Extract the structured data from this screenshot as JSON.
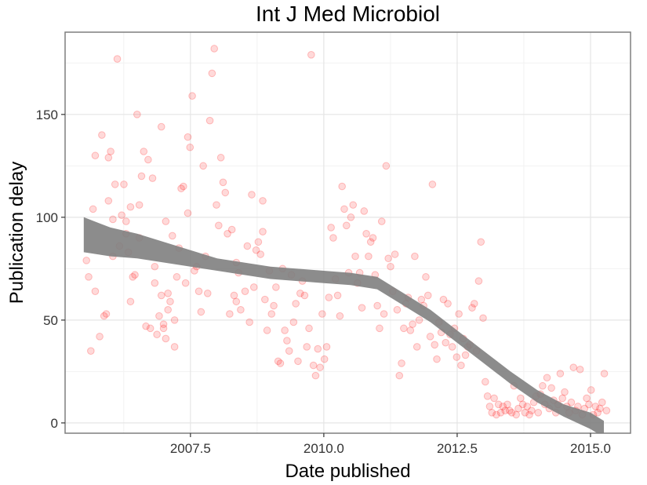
{
  "chart_data": {
    "type": "scatter",
    "title": "Int J Med Microbiol",
    "xlabel": "Date published",
    "ylabel": "Publication delay",
    "xlim": [
      2005.15,
      2015.75
    ],
    "ylim": [
      -5,
      190
    ],
    "x_ticks": [
      2007.5,
      2010.0,
      2012.5,
      2015.0
    ],
    "x_tick_labels": [
      "2007.5",
      "2010.0",
      "2012.5",
      "2015.0"
    ],
    "y_ticks": [
      0,
      50,
      100,
      150
    ],
    "y_tick_labels": [
      "0",
      "50",
      "100",
      "150"
    ],
    "grid": true,
    "point_color": "#ff0000",
    "point_opacity": 0.15,
    "smooth_color": "#808080",
    "series": [
      {
        "type": "points",
        "points": [
          [
            5.6,
            79
          ],
          [
            5.65,
            71
          ],
          [
            5.7,
            35
          ],
          [
            5.75,
            104
          ],
          [
            5.8,
            64
          ],
          [
            5.8,
            130
          ],
          [
            5.9,
            42
          ],
          [
            5.95,
            140
          ],
          [
            6.0,
            52
          ],
          [
            6.05,
            53
          ],
          [
            6.1,
            108
          ],
          [
            6.1,
            129
          ],
          [
            6.15,
            132
          ],
          [
            6.2,
            99
          ],
          [
            6.2,
            81
          ],
          [
            6.25,
            116
          ],
          [
            6.3,
            177
          ],
          [
            6.35,
            86
          ],
          [
            6.4,
            101
          ],
          [
            6.45,
            116
          ],
          [
            6.5,
            98
          ],
          [
            6.5,
            92
          ],
          [
            6.55,
            83
          ],
          [
            6.6,
            59
          ],
          [
            6.6,
            105
          ],
          [
            6.65,
            71
          ],
          [
            6.7,
            72
          ],
          [
            6.75,
            150
          ],
          [
            6.8,
            90
          ],
          [
            6.8,
            106
          ],
          [
            6.85,
            120
          ],
          [
            6.9,
            132
          ],
          [
            6.95,
            47
          ],
          [
            7.0,
            128
          ],
          [
            7.05,
            46
          ],
          [
            7.1,
            119
          ],
          [
            7.15,
            68
          ],
          [
            7.15,
            76
          ],
          [
            7.2,
            43
          ],
          [
            7.25,
            52
          ],
          [
            7.3,
            144
          ],
          [
            7.3,
            62
          ],
          [
            7.35,
            48
          ],
          [
            7.35,
            46
          ],
          [
            7.4,
            41
          ],
          [
            7.4,
            98
          ],
          [
            7.45,
            63
          ],
          [
            7.45,
            55
          ],
          [
            7.5,
            59
          ],
          [
            7.55,
            91
          ],
          [
            7.6,
            37
          ],
          [
            7.6,
            50
          ],
          [
            7.65,
            71
          ],
          [
            7.7,
            85
          ],
          [
            7.75,
            114
          ],
          [
            7.8,
            115
          ],
          [
            7.85,
            68
          ],
          [
            7.9,
            102
          ],
          [
            7.9,
            139
          ],
          [
            7.95,
            134
          ],
          [
            8.0,
            159
          ],
          [
            8.05,
            74
          ],
          [
            8.1,
            76
          ],
          [
            8.15,
            64
          ],
          [
            8.2,
            54
          ],
          [
            8.25,
            125
          ],
          [
            8.3,
            81
          ],
          [
            8.35,
            63
          ],
          [
            8.4,
            147
          ],
          [
            8.45,
            170
          ],
          [
            8.5,
            182
          ],
          [
            8.55,
            106
          ],
          [
            8.6,
            96
          ],
          [
            8.65,
            129
          ],
          [
            8.7,
            117
          ],
          [
            8.75,
            112
          ],
          [
            8.8,
            92
          ],
          [
            8.85,
            53
          ],
          [
            8.9,
            94
          ],
          [
            8.95,
            62
          ],
          [
            9.0,
            59
          ],
          [
            9.0,
            78
          ],
          [
            9.05,
            73
          ],
          [
            9.1,
            55
          ],
          [
            9.2,
            64
          ],
          [
            9.25,
            86
          ],
          [
            9.3,
            49
          ],
          [
            9.35,
            111
          ],
          [
            9.4,
            66
          ],
          [
            9.45,
            84
          ],
          [
            9.5,
            88
          ],
          [
            9.55,
            82
          ],
          [
            9.6,
            108
          ],
          [
            9.6,
            93
          ],
          [
            9.65,
            60
          ],
          [
            9.7,
            45
          ],
          [
            9.75,
            74
          ],
          [
            9.8,
            53
          ],
          [
            9.85,
            57
          ],
          [
            9.9,
            66
          ],
          [
            9.95,
            30
          ],
          [
            10.0,
            29
          ],
          [
            10.05,
            75
          ],
          [
            10.1,
            45
          ],
          [
            10.15,
            40
          ],
          [
            10.2,
            35
          ],
          [
            10.25,
            72
          ],
          [
            10.3,
            49
          ],
          [
            10.35,
            58
          ],
          [
            10.4,
            30
          ],
          [
            10.45,
            63
          ],
          [
            10.5,
            69
          ],
          [
            10.55,
            62
          ],
          [
            10.6,
            37
          ],
          [
            10.65,
            46
          ],
          [
            10.7,
            179
          ],
          [
            10.75,
            28
          ],
          [
            10.8,
            23
          ],
          [
            10.85,
            36
          ],
          [
            10.9,
            27
          ],
          [
            10.95,
            53
          ],
          [
            11.0,
            31
          ],
          [
            11.05,
            37
          ],
          [
            11.1,
            61
          ],
          [
            11.15,
            95
          ],
          [
            11.2,
            90
          ],
          [
            11.25,
            70
          ],
          [
            11.3,
            62
          ],
          [
            11.35,
            52
          ],
          [
            11.4,
            115
          ],
          [
            11.45,
            104
          ],
          [
            11.5,
            96
          ],
          [
            11.55,
            73
          ],
          [
            11.6,
            100
          ],
          [
            11.65,
            106
          ],
          [
            11.7,
            81
          ],
          [
            11.75,
            68
          ],
          [
            11.8,
            73
          ],
          [
            11.85,
            56
          ],
          [
            11.9,
            103
          ],
          [
            11.95,
            92
          ],
          [
            12.0,
            81
          ],
          [
            12.05,
            88
          ],
          [
            12.1,
            90
          ],
          [
            12.15,
            72
          ],
          [
            12.2,
            57
          ],
          [
            12.25,
            46
          ],
          [
            12.3,
            98
          ],
          [
            12.35,
            53
          ],
          [
            12.4,
            125
          ],
          [
            12.45,
            80
          ],
          [
            12.5,
            76
          ],
          [
            12.55,
            64
          ],
          [
            12.6,
            82
          ],
          [
            12.65,
            55
          ],
          [
            12.7,
            23
          ],
          [
            12.75,
            29
          ],
          [
            12.8,
            46
          ],
          [
            12.85,
            58
          ],
          [
            12.9,
            61
          ],
          [
            12.95,
            45
          ],
          [
            13.0,
            48
          ],
          [
            13.05,
            81
          ],
          [
            13.1,
            37
          ],
          [
            13.15,
            50
          ],
          [
            13.2,
            60
          ],
          [
            13.25,
            57
          ],
          [
            13.3,
            71
          ],
          [
            13.35,
            62
          ],
          [
            13.4,
            42
          ],
          [
            13.45,
            116
          ],
          [
            13.5,
            38
          ],
          [
            13.55,
            31
          ],
          [
            13.6,
            49
          ],
          [
            13.65,
            44
          ],
          [
            13.7,
            60
          ],
          [
            13.75,
            39
          ],
          [
            13.8,
            58
          ],
          [
            13.85,
            43
          ],
          [
            13.9,
            37
          ],
          [
            13.95,
            46
          ],
          [
            14.0,
            32
          ],
          [
            14.05,
            53
          ],
          [
            14.1,
            28
          ],
          [
            14.15,
            41
          ],
          [
            14.2,
            33
          ],
          [
            14.25,
            37
          ],
          [
            14.3,
            38
          ],
          [
            14.35,
            56
          ],
          [
            14.4,
            58
          ],
          [
            14.45,
            35
          ],
          [
            14.5,
            69
          ],
          [
            14.55,
            88
          ],
          [
            14.6,
            51
          ],
          [
            14.65,
            20
          ],
          [
            14.7,
            13
          ],
          [
            14.75,
            8
          ],
          [
            14.8,
            5
          ],
          [
            14.85,
            12
          ],
          [
            14.9,
            4
          ],
          [
            14.95,
            9
          ],
          [
            15.0,
            5
          ],
          [
            15.05,
            8
          ],
          [
            15.1,
            6
          ],
          [
            15.15,
            9
          ],
          [
            15.2,
            6
          ],
          [
            15.25,
            5
          ],
          [
            15.3,
            18
          ],
          [
            15.35,
            4
          ],
          [
            15.4,
            7
          ],
          [
            15.45,
            12
          ],
          [
            15.5,
            9
          ],
          [
            15.55,
            5
          ],
          [
            15.6,
            8
          ],
          [
            15.65,
            4
          ],
          [
            15.7,
            6
          ],
          [
            15.75,
            10
          ],
          [
            15.8,
            13
          ],
          [
            15.85,
            5
          ],
          [
            15.9,
            14
          ],
          [
            15.95,
            18
          ],
          [
            16.0,
            9
          ],
          [
            16.05,
            22
          ],
          [
            16.1,
            7
          ],
          [
            16.15,
            17
          ],
          [
            16.2,
            11
          ],
          [
            16.25,
            5
          ],
          [
            16.3,
            9
          ],
          [
            16.35,
            24
          ],
          [
            16.4,
            12
          ],
          [
            16.45,
            15
          ],
          [
            16.5,
            8
          ],
          [
            16.55,
            5
          ],
          [
            16.6,
            10
          ],
          [
            16.65,
            27
          ],
          [
            16.7,
            6
          ],
          [
            16.75,
            8
          ],
          [
            16.8,
            26
          ],
          [
            16.85,
            4
          ],
          [
            16.9,
            7
          ],
          [
            16.95,
            12
          ],
          [
            17.0,
            9
          ],
          [
            17.05,
            16
          ],
          [
            17.1,
            4
          ],
          [
            17.15,
            8
          ],
          [
            17.2,
            5
          ],
          [
            17.25,
            7
          ],
          [
            17.3,
            10
          ],
          [
            17.35,
            24
          ],
          [
            17.4,
            6
          ]
        ]
      },
      {
        "type": "smooth_band",
        "x": [
          2005.5,
          2006.0,
          2006.5,
          2007.0,
          2007.5,
          2008.0,
          2008.5,
          2009.0,
          2009.5,
          2010.0,
          2010.5,
          2011.0,
          2011.5,
          2012.0,
          2012.5,
          2013.0,
          2013.5,
          2014.0,
          2014.5,
          2015.0,
          2015.25
        ],
        "y": [
          91,
          88,
          86,
          83,
          80,
          77,
          75,
          73,
          72,
          71,
          70,
          68,
          60,
          52,
          42,
          32,
          22,
          13,
          6,
          1,
          -3
        ],
        "y_low": [
          83,
          81,
          80,
          78,
          76,
          74,
          72,
          70,
          69,
          68,
          67,
          65,
          57,
          49,
          39,
          29,
          19,
          10,
          3,
          -3,
          -7
        ],
        "y_high": [
          100,
          95,
          92,
          88,
          84,
          80,
          78,
          76,
          75,
          74,
          73,
          71,
          63,
          55,
          45,
          35,
          25,
          16,
          9,
          5,
          1
        ]
      }
    ]
  }
}
